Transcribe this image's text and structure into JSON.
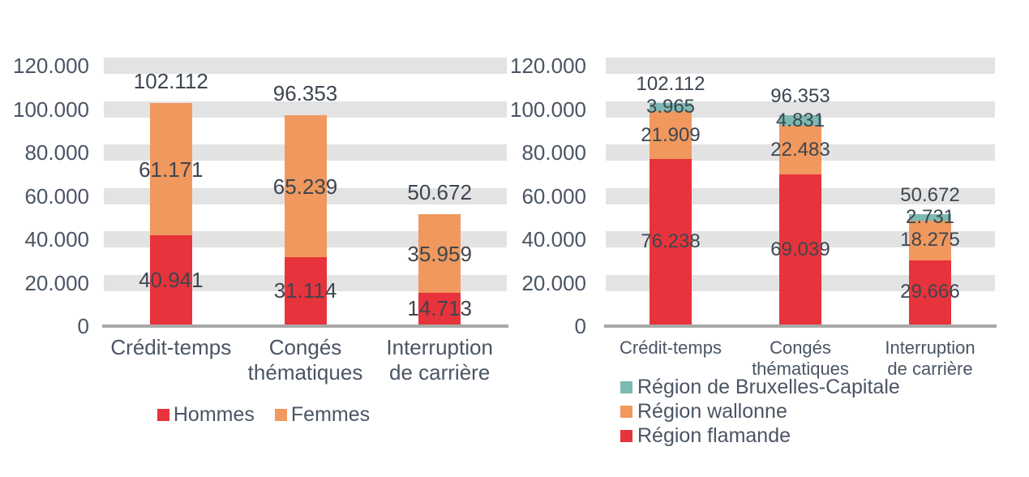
{
  "palette": {
    "red": "#e7333b",
    "orange": "#f0985d",
    "teal": "#7db9b3",
    "gridline_band": "#e3e3e3",
    "axis_line": "#a8a8a8",
    "axis_text": "#4a5564",
    "data_label_text": "#3d4650",
    "background": "#ffffff"
  },
  "chart_data": [
    {
      "type": "bar",
      "stacked": true,
      "title": "",
      "categories": [
        "Crédit-temps",
        "Congés thématiques",
        "Interruption de carrière"
      ],
      "series": [
        {
          "name": "Hommes",
          "color": "#e7333b",
          "values": [
            40941,
            31114,
            14713
          ]
        },
        {
          "name": "Femmes",
          "color": "#f0985d",
          "values": [
            61171,
            65239,
            35959
          ]
        }
      ],
      "totals": [
        102112,
        96353,
        50672
      ],
      "ylim": [
        0,
        120000
      ],
      "ytick_step": 20000,
      "ytick_labels": [
        "0",
        "20.000",
        "40.000",
        "60.000",
        "80.000",
        "100.000",
        "120.000"
      ],
      "grid": "horizontal-bands",
      "number_format": "thousands-dot",
      "legend": {
        "position": "bottom-center",
        "orientation": "horizontal",
        "items": [
          {
            "label": "Hommes",
            "color": "#e7333b"
          },
          {
            "label": "Femmes",
            "color": "#f0985d"
          }
        ]
      }
    },
    {
      "type": "bar",
      "stacked": true,
      "title": "",
      "categories": [
        "Crédit-temps",
        "Congés thématiques",
        "Interruption de carrière"
      ],
      "series": [
        {
          "name": "Région flamande",
          "color": "#e7333b",
          "values": [
            76238,
            69039,
            29666
          ]
        },
        {
          "name": "Région wallonne",
          "color": "#f0985d",
          "values": [
            21909,
            22483,
            18275
          ]
        },
        {
          "name": "Région de Bruxelles-Capitale",
          "color": "#7db9b3",
          "values": [
            3965,
            4831,
            2731
          ]
        }
      ],
      "totals": [
        102112,
        96353,
        50672
      ],
      "ylim": [
        0,
        120000
      ],
      "ytick_step": 20000,
      "ytick_labels": [
        "0",
        "20.000",
        "40.000",
        "60.000",
        "80.000",
        "100.000",
        "120.000"
      ],
      "grid": "horizontal-bands",
      "number_format": "thousands-dot",
      "legend": {
        "position": "bottom-left",
        "orientation": "vertical",
        "items": [
          {
            "label": "Région de Bruxelles-Capitale",
            "color": "#7db9b3"
          },
          {
            "label": "Région wallonne",
            "color": "#f0985d"
          },
          {
            "label": "Région flamande",
            "color": "#e7333b"
          }
        ]
      }
    }
  ]
}
